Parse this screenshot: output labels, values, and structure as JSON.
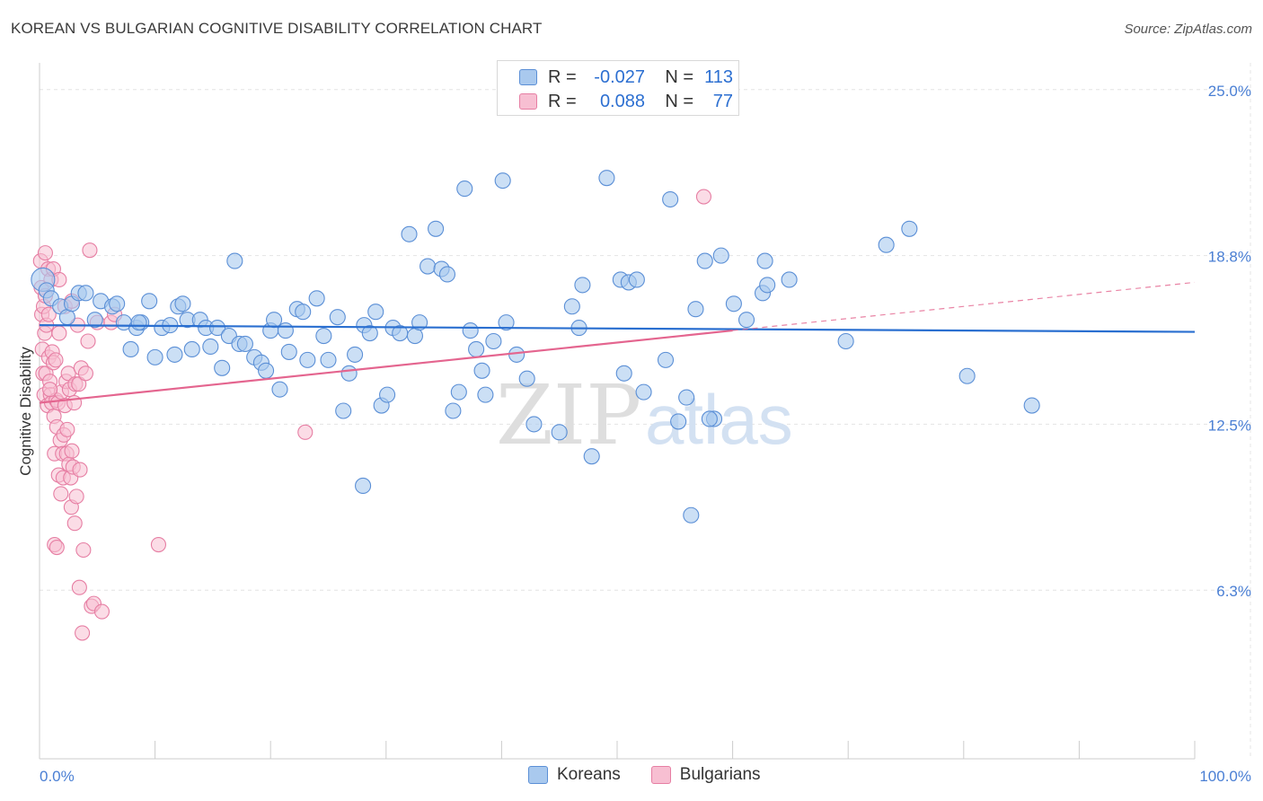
{
  "title": "KOREAN VS BULGARIAN COGNITIVE DISABILITY CORRELATION CHART",
  "source": "Source: ZipAtlas.com",
  "watermark": {
    "zip": "ZIP",
    "atlas": "atlas"
  },
  "legend": {
    "rows": [
      {
        "r_label": "R =",
        "r_value": "-0.027",
        "n_label": "N =",
        "n_value": "113",
        "color": "#5b9bd5"
      },
      {
        "r_label": "R =",
        "r_value": "0.088",
        "n_label": "N =",
        "n_value": "77",
        "color": "#e8709a"
      }
    ]
  },
  "bottom_legend": [
    "Koreans",
    "Bulgarians"
  ],
  "colors": {
    "blue_fill": "#a9c9ee",
    "blue_stroke": "#5b8fd6",
    "blue_line": "#2a6fd0",
    "pink_fill": "#f7bfd2",
    "pink_stroke": "#e67ea3",
    "pink_line": "#e4658f",
    "tick_text": "#4a7fd4",
    "grid": "#e4e4e4"
  },
  "chart_data": {
    "type": "scatter",
    "title": "KOREAN VS BULGARIAN COGNITIVE DISABILITY CORRELATION CHART",
    "xlabel": "",
    "ylabel": "Cognitive Disability",
    "xlim": [
      0,
      100
    ],
    "ylim": [
      0,
      26
    ],
    "x_tick_labels": [
      "0.0%",
      "100.0%"
    ],
    "y_ticks": [
      6.3,
      12.5,
      18.8,
      25.0
    ],
    "y_tick_labels": [
      "6.3%",
      "12.5%",
      "18.8%",
      "25.0%"
    ],
    "series": [
      {
        "name": "Koreans",
        "trend": {
          "x": [
            0,
            100
          ],
          "y": [
            16.2,
            15.95
          ]
        },
        "points": [
          [
            0.3,
            17.9
          ],
          [
            0.6,
            17.5
          ],
          [
            1.0,
            17.2
          ],
          [
            1.8,
            16.9
          ],
          [
            2.4,
            16.5
          ],
          [
            2.8,
            17.0
          ],
          [
            3.4,
            17.4
          ],
          [
            4.0,
            17.4
          ],
          [
            4.8,
            16.4
          ],
          [
            5.3,
            17.1
          ],
          [
            6.3,
            16.9
          ],
          [
            6.7,
            17.0
          ],
          [
            7.3,
            16.3
          ],
          [
            7.9,
            15.3
          ],
          [
            8.4,
            16.1
          ],
          [
            8.8,
            16.3
          ],
          [
            9.5,
            17.1
          ],
          [
            10.0,
            15.0
          ],
          [
            10.6,
            16.1
          ],
          [
            11.3,
            16.2
          ],
          [
            11.7,
            15.1
          ],
          [
            12.0,
            16.9
          ],
          [
            12.4,
            17.0
          ],
          [
            12.8,
            16.4
          ],
          [
            13.2,
            15.3
          ],
          [
            13.9,
            16.4
          ],
          [
            14.4,
            16.1
          ],
          [
            14.8,
            15.4
          ],
          [
            15.4,
            16.1
          ],
          [
            15.8,
            14.6
          ],
          [
            16.4,
            15.8
          ],
          [
            16.9,
            18.6
          ],
          [
            17.3,
            15.5
          ],
          [
            17.8,
            15.5
          ],
          [
            18.6,
            15.0
          ],
          [
            19.2,
            14.8
          ],
          [
            19.6,
            14.5
          ],
          [
            20.0,
            16.0
          ],
          [
            20.3,
            16.4
          ],
          [
            20.8,
            13.8
          ],
          [
            21.3,
            16.0
          ],
          [
            21.6,
            15.2
          ],
          [
            22.3,
            16.8
          ],
          [
            22.8,
            16.7
          ],
          [
            23.2,
            14.9
          ],
          [
            24.0,
            17.2
          ],
          [
            24.6,
            15.8
          ],
          [
            25.0,
            14.9
          ],
          [
            25.8,
            16.5
          ],
          [
            26.3,
            13.0
          ],
          [
            26.8,
            14.4
          ],
          [
            27.3,
            15.1
          ],
          [
            28.1,
            16.2
          ],
          [
            28.6,
            15.9
          ],
          [
            29.1,
            16.7
          ],
          [
            29.6,
            13.2
          ],
          [
            30.1,
            13.6
          ],
          [
            30.6,
            16.1
          ],
          [
            31.2,
            15.9
          ],
          [
            32.0,
            19.6
          ],
          [
            32.5,
            15.8
          ],
          [
            32.9,
            16.3
          ],
          [
            33.6,
            18.4
          ],
          [
            34.3,
            19.8
          ],
          [
            34.8,
            18.3
          ],
          [
            35.3,
            18.1
          ],
          [
            35.8,
            13.0
          ],
          [
            36.3,
            13.7
          ],
          [
            36.8,
            21.3
          ],
          [
            37.3,
            16.0
          ],
          [
            37.8,
            15.3
          ],
          [
            38.3,
            14.5
          ],
          [
            38.6,
            13.6
          ],
          [
            39.3,
            15.6
          ],
          [
            40.1,
            21.6
          ],
          [
            40.4,
            16.3
          ],
          [
            41.3,
            15.1
          ],
          [
            42.2,
            14.2
          ],
          [
            42.8,
            12.5
          ],
          [
            45.0,
            12.2
          ],
          [
            46.1,
            16.9
          ],
          [
            46.7,
            16.1
          ],
          [
            47.0,
            17.7
          ],
          [
            47.8,
            11.3
          ],
          [
            49.1,
            21.7
          ],
          [
            50.3,
            17.9
          ],
          [
            50.6,
            14.4
          ],
          [
            51.0,
            17.8
          ],
          [
            51.7,
            17.9
          ],
          [
            52.3,
            13.7
          ],
          [
            54.2,
            14.9
          ],
          [
            54.6,
            20.9
          ],
          [
            55.3,
            12.6
          ],
          [
            56.4,
            9.1
          ],
          [
            56.8,
            16.8
          ],
          [
            57.6,
            18.6
          ],
          [
            58.4,
            12.7
          ],
          [
            59.0,
            18.8
          ],
          [
            60.1,
            17.0
          ],
          [
            61.2,
            16.4
          ],
          [
            62.6,
            17.4
          ],
          [
            62.8,
            18.6
          ],
          [
            63.0,
            17.7
          ],
          [
            64.9,
            17.9
          ],
          [
            69.8,
            15.6
          ],
          [
            73.3,
            19.2
          ],
          [
            75.3,
            19.8
          ],
          [
            80.3,
            14.3
          ],
          [
            85.9,
            13.2
          ],
          [
            28.0,
            10.2
          ],
          [
            56.0,
            13.5
          ],
          [
            58.0,
            12.7
          ],
          [
            8.6,
            16.3
          ]
        ]
      },
      {
        "name": "Bulgarians",
        "trend": {
          "x": [
            0,
            60
          ],
          "y": [
            13.3,
            16.0
          ]
        },
        "trend_dashed": {
          "x": [
            60,
            100
          ],
          "y": [
            16.0,
            17.8
          ]
        },
        "points": [
          [
            0.1,
            18.6
          ],
          [
            0.15,
            17.6
          ],
          [
            0.2,
            16.6
          ],
          [
            0.25,
            15.3
          ],
          [
            0.3,
            14.4
          ],
          [
            0.35,
            16.9
          ],
          [
            0.4,
            13.6
          ],
          [
            0.45,
            15.9
          ],
          [
            0.5,
            17.3
          ],
          [
            0.55,
            14.4
          ],
          [
            0.6,
            16.2
          ],
          [
            0.7,
            13.2
          ],
          [
            0.75,
            18.3
          ],
          [
            0.8,
            15.0
          ],
          [
            0.9,
            14.1
          ],
          [
            0.95,
            13.6
          ],
          [
            1.0,
            17.9
          ],
          [
            1.05,
            13.3
          ],
          [
            1.1,
            15.2
          ],
          [
            1.2,
            14.8
          ],
          [
            1.25,
            12.8
          ],
          [
            1.3,
            11.4
          ],
          [
            1.4,
            14.9
          ],
          [
            1.45,
            13.4
          ],
          [
            1.5,
            12.4
          ],
          [
            1.6,
            13.3
          ],
          [
            1.65,
            10.6
          ],
          [
            1.7,
            15.9
          ],
          [
            1.8,
            11.9
          ],
          [
            1.85,
            9.9
          ],
          [
            1.9,
            13.7
          ],
          [
            2.0,
            11.4
          ],
          [
            2.05,
            10.5
          ],
          [
            2.1,
            12.1
          ],
          [
            2.2,
            13.2
          ],
          [
            2.3,
            14.1
          ],
          [
            2.35,
            11.4
          ],
          [
            2.4,
            12.3
          ],
          [
            2.5,
            14.4
          ],
          [
            2.55,
            11.0
          ],
          [
            2.6,
            13.8
          ],
          [
            2.7,
            10.5
          ],
          [
            2.75,
            9.4
          ],
          [
            2.8,
            11.5
          ],
          [
            2.9,
            10.9
          ],
          [
            3.0,
            13.3
          ],
          [
            3.05,
            8.8
          ],
          [
            3.1,
            14.0
          ],
          [
            3.2,
            9.8
          ],
          [
            3.3,
            16.2
          ],
          [
            3.4,
            14.0
          ],
          [
            3.45,
            6.4
          ],
          [
            3.5,
            10.8
          ],
          [
            3.6,
            14.6
          ],
          [
            3.7,
            4.7
          ],
          [
            3.8,
            7.8
          ],
          [
            4.0,
            14.4
          ],
          [
            4.2,
            15.6
          ],
          [
            4.35,
            19.0
          ],
          [
            4.5,
            5.7
          ],
          [
            4.7,
            5.8
          ],
          [
            5.0,
            16.3
          ],
          [
            5.4,
            5.5
          ],
          [
            0.5,
            18.9
          ],
          [
            1.2,
            18.3
          ],
          [
            0.8,
            16.6
          ],
          [
            1.7,
            17.9
          ],
          [
            2.2,
            16.9
          ],
          [
            2.8,
            17.1
          ],
          [
            6.2,
            16.3
          ],
          [
            6.5,
            16.6
          ],
          [
            10.3,
            8.0
          ],
          [
            23.0,
            12.2
          ],
          [
            57.5,
            21.0
          ],
          [
            1.3,
            8.0
          ],
          [
            0.9,
            13.8
          ],
          [
            1.5,
            7.9
          ]
        ]
      }
    ]
  }
}
